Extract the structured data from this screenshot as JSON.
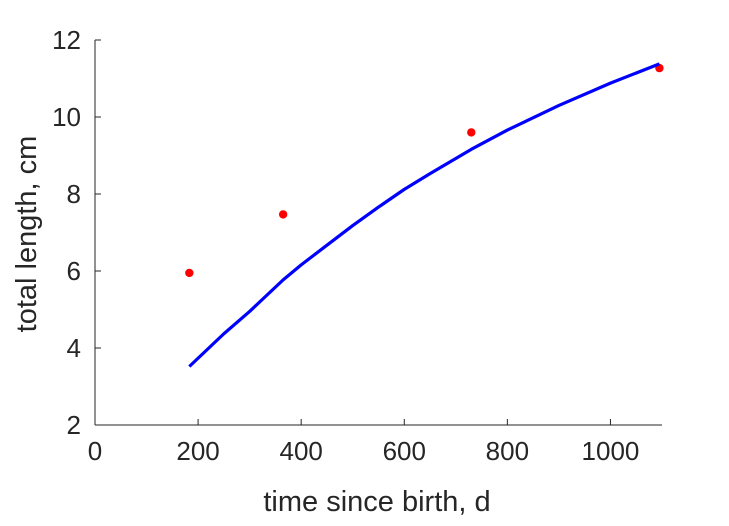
{
  "chart_data": {
    "type": "scatter",
    "title": "",
    "xlabel": "time since birth, d",
    "ylabel": "total length, cm",
    "xlim": [
      0,
      1100
    ],
    "ylim": [
      2,
      12
    ],
    "x_ticks": [
      0,
      200,
      400,
      600,
      800,
      1000
    ],
    "y_ticks": [
      2,
      4,
      6,
      8,
      10,
      12
    ],
    "x_tick_labels": [
      "0",
      "200",
      "400",
      "600",
      "800",
      "1000"
    ],
    "y_tick_labels": [
      "2",
      "4",
      "6",
      "8",
      "10",
      "12"
    ],
    "grid": false,
    "series": [
      {
        "kind": "scatter",
        "color": "#ff0000",
        "x": [
          183,
          365,
          730,
          1095
        ],
        "y": [
          5.95,
          7.47,
          9.6,
          11.27
        ]
      },
      {
        "kind": "line",
        "color": "#0000ff",
        "x": [
          183,
          250,
          300,
          365,
          400,
          450,
          500,
          550,
          600,
          650,
          730,
          800,
          900,
          1000,
          1095
        ],
        "y": [
          3.52,
          4.37,
          4.95,
          5.77,
          6.16,
          6.67,
          7.18,
          7.66,
          8.12,
          8.53,
          9.16,
          9.66,
          10.3,
          10.88,
          11.38
        ]
      }
    ]
  }
}
